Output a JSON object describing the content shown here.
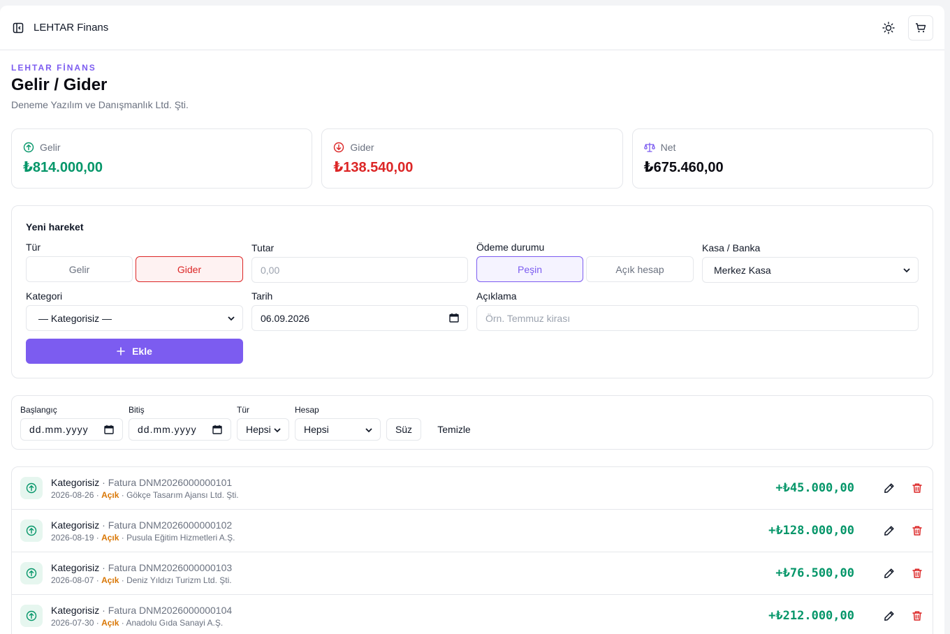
{
  "topbar": {
    "brand": "LEHTAR Finans"
  },
  "header": {
    "eyebrow": "LEHTAR FİNANS",
    "title": "Gelir / Gider",
    "company": "Deneme Yazılım ve Danışmanlık Ltd. Şti."
  },
  "stats": [
    {
      "label": "Gelir",
      "value": "₺814.000,00",
      "color": "#059669"
    },
    {
      "label": "Gider",
      "value": "₺138.540,00",
      "color": "#dc2626"
    },
    {
      "label": "Net",
      "value": "₺675.460,00",
      "color": "#0b0b12"
    }
  ],
  "form": {
    "title": "Yeni hareket",
    "type_label": "Tür",
    "type_income": "Gelir",
    "type_expense": "Gider",
    "amount_label": "Tutar",
    "amount_placeholder": "0,00",
    "payment_label": "Ödeme durumu",
    "payment_cash": "Peşin",
    "payment_open": "Açık hesap",
    "account_label": "Kasa / Banka",
    "account_value": "Merkez Kasa",
    "category_label": "Kategori",
    "category_value": "— Kategorisiz —",
    "date_label": "Tarih",
    "date_value": "06.09.2026",
    "desc_label": "Açıklama",
    "desc_placeholder": "Örn. Temmuz kirası",
    "add_button": "Ekle"
  },
  "filter": {
    "start_label": "Başlangıç",
    "start_value": "dd.mm.yyyy",
    "end_label": "Bitiş",
    "end_value": "dd.mm.yyyy",
    "type_label": "Tür",
    "type_value": "Hepsi",
    "account_label": "Hesap",
    "account_value": "Hepsi",
    "apply_button": "Süz",
    "clear_button": "Temizle"
  },
  "transactions": [
    {
      "category": "Kategorisiz",
      "ref": " · Fatura DNM2026000000101",
      "date": "2026-08-26",
      "status": "Açık",
      "party": "Gökçe Tasarım Ajansı Ltd. Şti.",
      "amount": "+₺45.000,00"
    },
    {
      "category": "Kategorisiz",
      "ref": " · Fatura DNM2026000000102",
      "date": "2026-08-19",
      "status": "Açık",
      "party": "Pusula Eğitim Hizmetleri A.Ş.",
      "amount": "+₺128.000,00"
    },
    {
      "category": "Kategorisiz",
      "ref": " · Fatura DNM2026000000103",
      "date": "2026-08-07",
      "status": "Açık",
      "party": "Deniz Yıldızı Turizm Ltd. Şti.",
      "amount": "+₺76.500,00"
    },
    {
      "category": "Kategorisiz",
      "ref": " · Fatura DNM2026000000104",
      "date": "2026-07-30",
      "status": "Açık",
      "party": "Anadolu Gıda Sanayi A.Ş.",
      "amount": "+₺212.000,00"
    }
  ],
  "separator": " · "
}
